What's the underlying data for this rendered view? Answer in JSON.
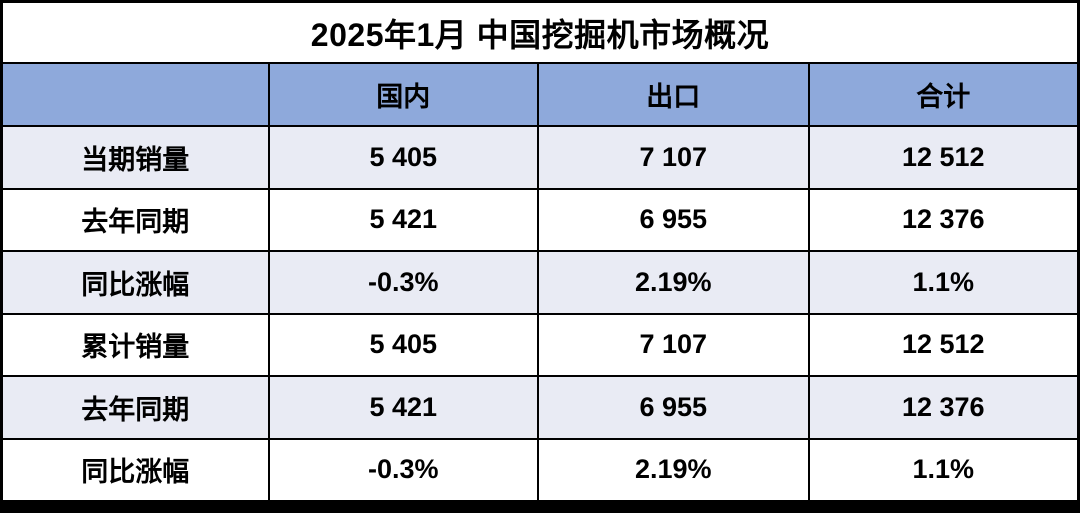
{
  "chart_data": {
    "type": "table",
    "title": "2025年1月 中国挖掘机市场概况",
    "columns": [
      "",
      "国内",
      "出口",
      "合计"
    ],
    "rows": [
      [
        "当期销量",
        "5 405",
        "7 107",
        "12 512"
      ],
      [
        "去年同期",
        "5 421",
        "6 955",
        "12 376"
      ],
      [
        "同比涨幅",
        "-0.3%",
        "2.19%",
        "1.1%"
      ],
      [
        "累计销量",
        "5 405",
        "7 107",
        "12 512"
      ],
      [
        "去年同期",
        "5 421",
        "6 955",
        "12 376"
      ],
      [
        "同比涨幅",
        "-0.3%",
        "2.19%",
        "1.1%"
      ]
    ],
    "layout_hints": {
      "title_position": "top-merged-row",
      "header_fill": "#8EA9DB",
      "alternating_row_fill": "#E9EBF4",
      "plain_row_fill": "#FFFFFF",
      "border_color": "#000000",
      "grid": "on",
      "number_format": "space-thousands-separator"
    }
  },
  "colors": {
    "header_bg": "#8EA9DB",
    "row_alt_bg": "#E9EBF4",
    "row_plain_bg": "#FFFFFF",
    "border": "#000000",
    "text": "#000000",
    "bottom_strip": "#000000"
  }
}
